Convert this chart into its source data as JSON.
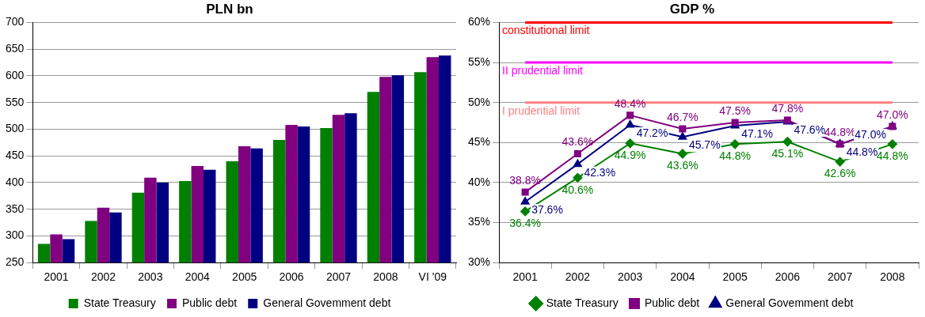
{
  "chart_data": [
    {
      "type": "bar",
      "title": "PLN bn",
      "categories": [
        "2001",
        "2002",
        "2003",
        "2004",
        "2005",
        "2006",
        "2007",
        "2008",
        "VI '09"
      ],
      "series": [
        {
          "name": "State Treasury",
          "color": "#008000",
          "values": [
            285,
            328,
            381,
            403,
            440,
            480,
            502,
            570,
            607
          ]
        },
        {
          "name": "Public debt",
          "color": "#800080",
          "values": [
            303,
            353,
            409,
            431,
            468,
            508,
            527,
            598,
            635
          ]
        },
        {
          "name": "General Govemment debt",
          "color": "#000080",
          "values": [
            294,
            344,
            400,
            424,
            464,
            505,
            530,
            601,
            638
          ]
        }
      ],
      "ylim": [
        250,
        700
      ],
      "yticks": [
        250,
        300,
        350,
        400,
        450,
        500,
        550,
        600,
        650,
        700
      ],
      "grid": "y",
      "legend": "bottom"
    },
    {
      "type": "line",
      "title": "GDP %",
      "categories": [
        "2001",
        "2002",
        "2003",
        "2004",
        "2005",
        "2006",
        "2007",
        "2008"
      ],
      "series": [
        {
          "name": "State Treasury",
          "color": "#008000",
          "marker": "diamond",
          "values": [
            36.4,
            40.6,
            44.9,
            43.6,
            44.8,
            45.1,
            42.6,
            44.8
          ],
          "value_labels": [
            "36.4%",
            "40.6%",
            "44.9%",
            "43.6%",
            "44.8%",
            "45.1%",
            "42.6%",
            "44.8%"
          ]
        },
        {
          "name": "Public debt",
          "color": "#800080",
          "marker": "square",
          "values": [
            38.8,
            43.6,
            48.4,
            46.7,
            47.5,
            47.8,
            44.8,
            47.0
          ],
          "value_labels": [
            "38.8%",
            "43.6%",
            "48.4%",
            "46.7%",
            "47.5%",
            "47.8%",
            "44.8%",
            "47.0%"
          ]
        },
        {
          "name": "General Govemment debt",
          "color": "#000080",
          "marker": "triangle",
          "values": [
            37.6,
            42.3,
            47.2,
            45.7,
            47.1,
            47.6,
            44.8,
            47.0
          ],
          "value_labels": [
            "37.6%",
            "42.3%",
            "47.2%",
            "45.7%",
            "47.1%",
            "47.6%",
            "44.8%",
            "47.0%"
          ]
        }
      ],
      "ylim": [
        30,
        60
      ],
      "yticks": [
        {
          "value": 30,
          "label": "30%"
        },
        {
          "value": 35,
          "label": "35%"
        },
        {
          "value": 40,
          "label": "40%"
        },
        {
          "value": 45,
          "label": "45%"
        },
        {
          "value": 50,
          "label": "50%"
        },
        {
          "value": 55,
          "label": "55%"
        },
        {
          "value": 60,
          "label": "60%"
        }
      ],
      "ref_lines": [
        {
          "axis": "y",
          "value": 60,
          "label": "constitutional limit",
          "color": "#ff0000"
        },
        {
          "axis": "y",
          "value": 55,
          "label": "II prudential limit",
          "color": "#ff00ff"
        },
        {
          "axis": "y",
          "value": 50,
          "label": "I prudential limit",
          "color": "#ff8080"
        }
      ],
      "grid": "y",
      "legend": "bottom"
    }
  ]
}
